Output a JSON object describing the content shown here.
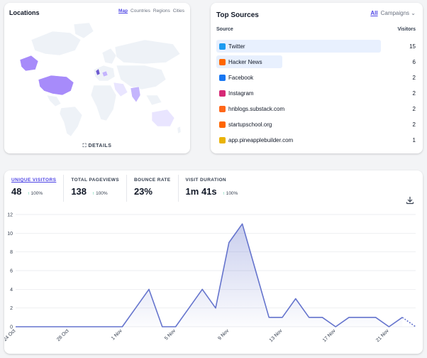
{
  "locations": {
    "title": "Locations",
    "tabs": [
      "Map",
      "Countries",
      "Regions",
      "Cities"
    ],
    "details_label": "DETAILS"
  },
  "sources": {
    "title": "Top Sources",
    "filter_all": "All",
    "filter_campaigns": "Campaigns",
    "col_source": "Source",
    "col_visitors": "Visitors",
    "rows": [
      {
        "name": "Twitter",
        "visitors": "15",
        "icon": "twitter-icon",
        "color": "#1d9bf0",
        "fraction": 1.0
      },
      {
        "name": "Hacker News",
        "visitors": "6",
        "icon": "hacker-news-icon",
        "color": "#ff6600",
        "fraction": 0.4
      },
      {
        "name": "Facebook",
        "visitors": "2",
        "icon": "facebook-icon",
        "color": "#1877f2",
        "fraction": 0.0
      },
      {
        "name": "Instagram",
        "visitors": "2",
        "icon": "instagram-icon",
        "color": "#d62976",
        "fraction": 0.0
      },
      {
        "name": "hnblogs.substack.com",
        "visitors": "2",
        "icon": "substack-icon",
        "color": "#ff6719",
        "fraction": 0.0
      },
      {
        "name": "startupschool.org",
        "visitors": "2",
        "icon": "startupschool-icon",
        "color": "#ff6600",
        "fraction": 0.0
      },
      {
        "name": "app.pineapplebuilder.com",
        "visitors": "1",
        "icon": "pineapple-icon",
        "color": "#eab308",
        "fraction": 0.0
      }
    ]
  },
  "stats": [
    {
      "label": "UNIQUE VISITORS",
      "value": "48",
      "change": "100%",
      "active": true
    },
    {
      "label": "TOTAL PAGEVIEWS",
      "value": "138",
      "change": "100%",
      "active": false
    },
    {
      "label": "BOUNCE RATE",
      "value": "23%",
      "change": "",
      "active": false
    },
    {
      "label": "VISIT DURATION",
      "value": "1m 41s",
      "change": "100%",
      "active": false
    }
  ],
  "chart_data": {
    "type": "line",
    "x": [
      "24 Oct",
      "25 Oct",
      "26 Oct",
      "27 Oct",
      "28 Oct",
      "29 Oct",
      "30 Oct",
      "31 Oct",
      "1 Nov",
      "2 Nov",
      "3 Nov",
      "4 Nov",
      "5 Nov",
      "6 Nov",
      "7 Nov",
      "8 Nov",
      "9 Nov",
      "10 Nov",
      "11 Nov",
      "12 Nov",
      "13 Nov",
      "14 Nov",
      "15 Nov",
      "16 Nov",
      "17 Nov",
      "18 Nov",
      "19 Nov",
      "20 Nov",
      "21 Nov",
      "22 Nov",
      "23 Nov"
    ],
    "values": [
      0,
      0,
      0,
      0,
      0,
      0,
      0,
      0,
      0,
      2,
      4,
      0,
      0,
      2,
      4,
      2,
      9,
      11,
      6,
      1,
      1,
      3,
      1,
      1,
      0,
      1,
      1,
      1,
      0,
      1,
      0
    ],
    "xtick_labels": [
      "24 Oct",
      "28 Oct",
      "1 Nov",
      "5 Nov",
      "9 Nov",
      "13 Nov",
      "17 Nov",
      "21 Nov"
    ],
    "ytick_labels": [
      "0",
      "2",
      "4",
      "6",
      "8",
      "10",
      "12"
    ],
    "ylim": [
      0,
      12
    ],
    "dotted_last_segment": true,
    "color": "#6574cd",
    "grid": true
  },
  "colors": {
    "accent": "#4f46e5",
    "map_high": "#a78bfa",
    "map_mid": "#c4b5fd",
    "map_low": "#e9e5ff",
    "map_base": "#eef2f7"
  }
}
